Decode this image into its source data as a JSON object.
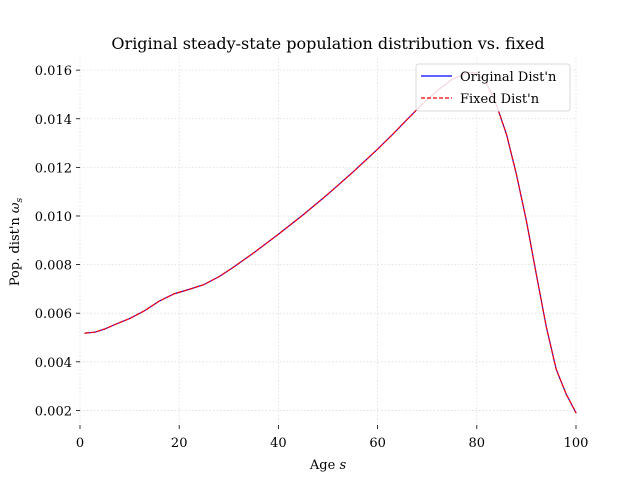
{
  "chart_data": {
    "type": "line",
    "title": "Original steady-state population distribution vs. fixed",
    "xlabel": "Age",
    "xlabel_var": "s",
    "ylabel": "Pop. dist'n",
    "ylabel_var": "ω",
    "ylabel_sub": "s",
    "xlim": [
      0,
      100
    ],
    "ylim": [
      0.0014,
      0.0165
    ],
    "xticks": [
      0,
      20,
      40,
      60,
      80,
      100
    ],
    "xtick_labels": [
      "0",
      "20",
      "40",
      "60",
      "80",
      "100"
    ],
    "yticks": [
      0.002,
      0.004,
      0.006,
      0.008,
      0.01,
      0.012,
      0.014,
      0.016
    ],
    "ytick_labels": [
      "0.002",
      "0.004",
      "0.006",
      "0.008",
      "0.010",
      "0.012",
      "0.014",
      "0.016"
    ],
    "grid": true,
    "legend_position": "top-right",
    "series": [
      {
        "name": "Original Dist'n",
        "color": "#0000ff",
        "dash": "solid",
        "x": [
          1,
          3,
          5,
          7,
          10,
          13,
          16,
          19,
          22,
          25,
          28,
          31,
          35,
          40,
          45,
          50,
          55,
          60,
          63,
          66,
          69,
          72,
          75,
          78,
          80,
          82,
          84,
          86,
          88,
          90,
          92,
          94,
          96,
          98,
          100
        ],
        "y": [
          0.00518,
          0.00522,
          0.00535,
          0.00553,
          0.00578,
          0.0061,
          0.0065,
          0.0068,
          0.00698,
          0.00718,
          0.0075,
          0.0079,
          0.00848,
          0.00925,
          0.01005,
          0.0109,
          0.0118,
          0.01275,
          0.01335,
          0.01398,
          0.0146,
          0.01515,
          0.01562,
          0.0159,
          0.0159,
          0.01545,
          0.01455,
          0.01335,
          0.0117,
          0.0098,
          0.0076,
          0.00545,
          0.0037,
          0.00268,
          0.0019
        ]
      },
      {
        "name": "Fixed Dist'n",
        "color": "#ff0000",
        "dash": "dashed",
        "x": [
          1,
          3,
          5,
          7,
          10,
          13,
          16,
          19,
          22,
          25,
          28,
          31,
          35,
          40,
          45,
          50,
          55,
          60,
          63,
          66,
          69,
          72,
          75,
          78,
          80,
          82,
          84,
          86,
          88,
          90,
          92,
          94,
          96,
          98,
          100
        ],
        "y": [
          0.00518,
          0.00522,
          0.00535,
          0.00553,
          0.00578,
          0.0061,
          0.0065,
          0.0068,
          0.00698,
          0.00718,
          0.0075,
          0.0079,
          0.00848,
          0.00925,
          0.01005,
          0.0109,
          0.0118,
          0.01275,
          0.01335,
          0.01398,
          0.0146,
          0.01515,
          0.01562,
          0.0159,
          0.0159,
          0.01545,
          0.01455,
          0.01335,
          0.0117,
          0.0098,
          0.0076,
          0.00545,
          0.0037,
          0.00268,
          0.0019
        ]
      }
    ]
  }
}
